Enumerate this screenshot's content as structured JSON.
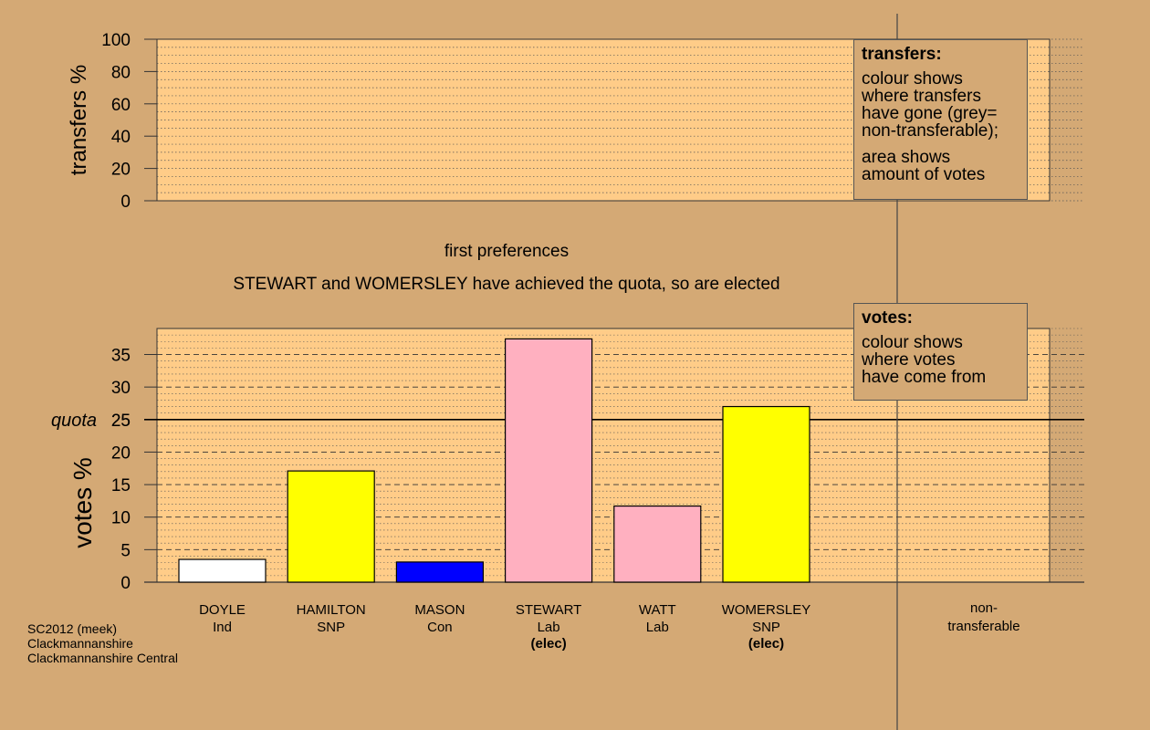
{
  "chart_data": [
    {
      "type": "bar",
      "ylabel": "transfers %",
      "ylim": [
        0,
        100
      ],
      "yticks": [
        0,
        20,
        40,
        60,
        80,
        100
      ],
      "grid": true,
      "series": []
    },
    {
      "type": "bar",
      "ylabel": "votes %",
      "ylim": [
        0,
        39
      ],
      "yticks": [
        0,
        5,
        10,
        15,
        20,
        25,
        30,
        35
      ],
      "grid": true,
      "quota": 25,
      "quota_label": "quota",
      "categories": [
        {
          "name": "DOYLE",
          "party": "Ind",
          "note": "",
          "color": "#ffffff",
          "value": 3.5
        },
        {
          "name": "HAMILTON",
          "party": "SNP",
          "note": "",
          "color": "#ffff00",
          "value": 17.1
        },
        {
          "name": "MASON",
          "party": "Con",
          "note": "",
          "color": "#0000ff",
          "value": 3.1
        },
        {
          "name": "STEWART",
          "party": "Lab",
          "note": "(elec)",
          "color": "#ffb0c0",
          "value": 37.4
        },
        {
          "name": "WATT",
          "party": "Lab",
          "note": "",
          "color": "#ffb0c0",
          "value": 11.7
        },
        {
          "name": "WOMERSLEY",
          "party": "SNP",
          "note": "(elec)",
          "color": "#ffff00",
          "value": 27.0
        }
      ],
      "nontransferable_label": [
        "non-",
        "transferable"
      ]
    }
  ],
  "stage_title": "first preferences",
  "stage_message": "STEWART and WOMERSLEY have achieved the quota, so are elected",
  "legend_transfers": {
    "title": "transfers:",
    "text": "colour shows\nwhere transfers\nhave gone (grey=\nnon-transferable);",
    "text2": "area shows\namount of votes"
  },
  "legend_votes": {
    "title": "votes:",
    "text": "colour shows\nwhere votes\nhave come from"
  },
  "footer": {
    "line1": "SC2012 (meek)",
    "line2": "Clackmannanshire",
    "line3": "Clackmannanshire Central"
  },
  "colors": {
    "background": "#d4a975",
    "plot_bg": "#ffcc88"
  }
}
